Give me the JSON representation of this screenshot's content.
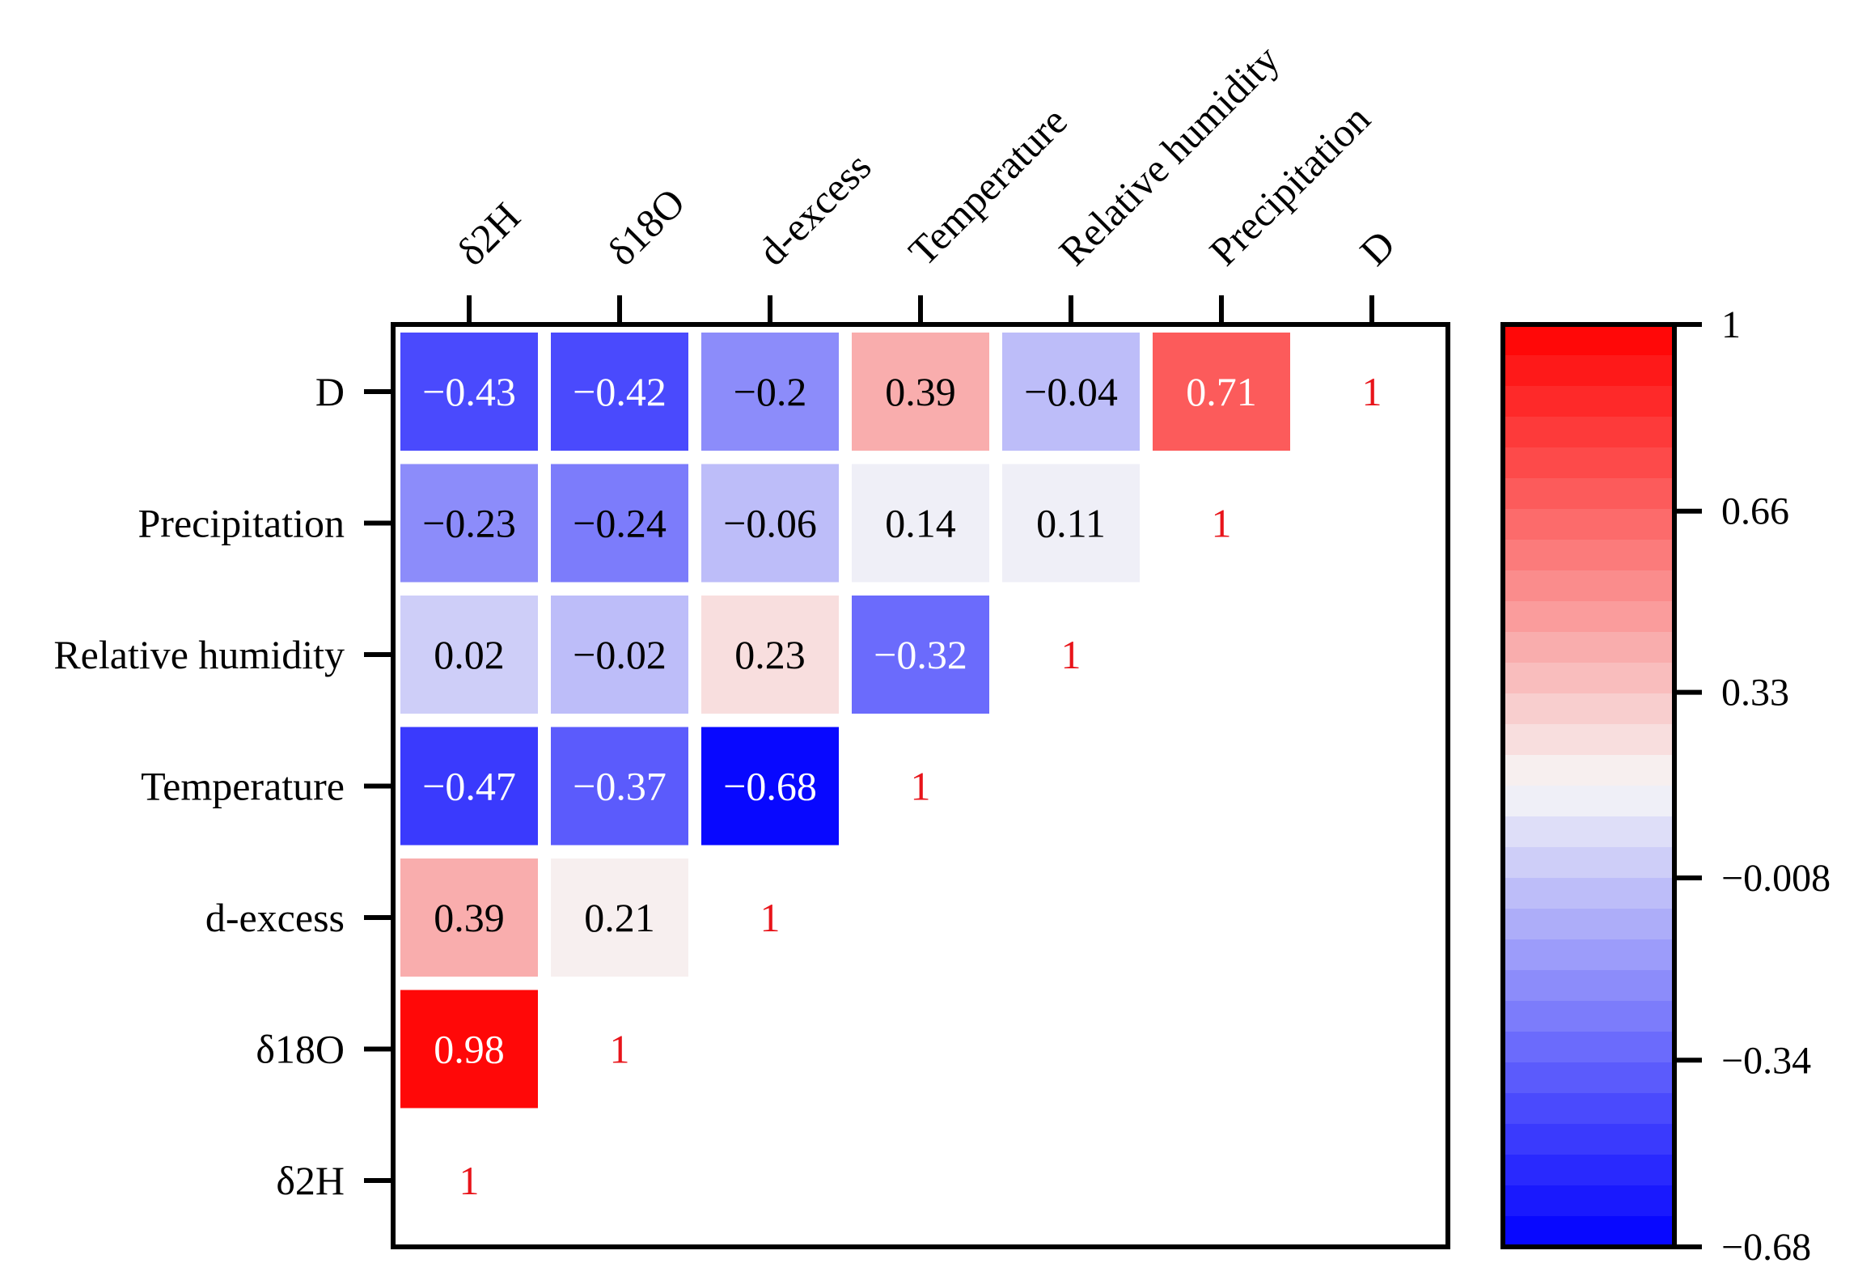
{
  "chart_data": {
    "type": "heatmap",
    "title": "",
    "x_labels": [
      "δ2H",
      "δ18O",
      "d-excess",
      "Temperature",
      "Relative humidity",
      "Precipitation",
      "D"
    ],
    "y_labels": [
      "D",
      "Precipitation",
      "Relative humidity",
      "Temperature",
      "d-excess",
      "δ18O",
      "δ2H"
    ],
    "cells": [
      {
        "row": 0,
        "col": 0,
        "value": -0.43,
        "label": "−0.43"
      },
      {
        "row": 0,
        "col": 1,
        "value": -0.42,
        "label": "−0.42"
      },
      {
        "row": 0,
        "col": 2,
        "value": -0.2,
        "label": "−0.2"
      },
      {
        "row": 0,
        "col": 3,
        "value": 0.39,
        "label": "0.39"
      },
      {
        "row": 0,
        "col": 4,
        "value": -0.04,
        "label": "−0.04"
      },
      {
        "row": 0,
        "col": 5,
        "value": 0.71,
        "label": "0.71"
      },
      {
        "row": 0,
        "col": 6,
        "value": 1,
        "label": "1",
        "diagonal": true
      },
      {
        "row": 1,
        "col": 0,
        "value": -0.23,
        "label": "−0.23"
      },
      {
        "row": 1,
        "col": 1,
        "value": -0.24,
        "label": "−0.24"
      },
      {
        "row": 1,
        "col": 2,
        "value": -0.06,
        "label": "−0.06"
      },
      {
        "row": 1,
        "col": 3,
        "value": 0.14,
        "label": "0.14"
      },
      {
        "row": 1,
        "col": 4,
        "value": 0.11,
        "label": "0.11"
      },
      {
        "row": 1,
        "col": 5,
        "value": 1,
        "label": "1",
        "diagonal": true
      },
      {
        "row": 2,
        "col": 0,
        "value": 0.02,
        "label": "0.02"
      },
      {
        "row": 2,
        "col": 1,
        "value": -0.02,
        "label": "−0.02"
      },
      {
        "row": 2,
        "col": 2,
        "value": 0.23,
        "label": "0.23"
      },
      {
        "row": 2,
        "col": 3,
        "value": -0.32,
        "label": "−0.32"
      },
      {
        "row": 2,
        "col": 4,
        "value": 1,
        "label": "1",
        "diagonal": true
      },
      {
        "row": 3,
        "col": 0,
        "value": -0.47,
        "label": "−0.47"
      },
      {
        "row": 3,
        "col": 1,
        "value": -0.37,
        "label": "−0.37"
      },
      {
        "row": 3,
        "col": 2,
        "value": -0.68,
        "label": "−0.68"
      },
      {
        "row": 3,
        "col": 3,
        "value": 1,
        "label": "1",
        "diagonal": true
      },
      {
        "row": 4,
        "col": 0,
        "value": 0.39,
        "label": "0.39"
      },
      {
        "row": 4,
        "col": 1,
        "value": 0.21,
        "label": "0.21"
      },
      {
        "row": 4,
        "col": 2,
        "value": 1,
        "label": "1",
        "diagonal": true
      },
      {
        "row": 5,
        "col": 0,
        "value": 0.98,
        "label": "0.98"
      },
      {
        "row": 5,
        "col": 1,
        "value": 1,
        "label": "1",
        "diagonal": true
      },
      {
        "row": 6,
        "col": 0,
        "value": 1,
        "label": "1",
        "diagonal": true
      }
    ],
    "colorbar": {
      "min": -0.68,
      "max": 1,
      "ticks": [
        1,
        0.66,
        0.33,
        -0.008,
        -0.34,
        -0.68
      ],
      "tick_labels": [
        "1",
        "0.66",
        "0.33",
        "−0.008",
        "−0.34",
        "−0.68"
      ],
      "steps": 30
    },
    "colors": {
      "low": "#0000ff",
      "mid": "#f7f7f7",
      "high": "#ff0000",
      "diagonal_text": "#e8141a",
      "light_text": "#ffffff",
      "dark_text": "#000000",
      "frame": "#000000"
    }
  }
}
